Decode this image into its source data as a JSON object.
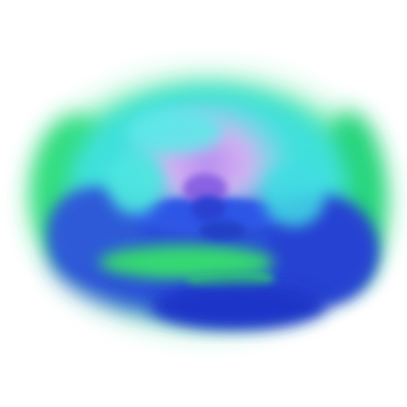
{
  "image": {
    "colors": {
      "background": "#ffffff",
      "outer_ring_green": "#2fe38a",
      "mid_ring_cyan": "#3fe0e0",
      "inner_glow_lavender": "#d0a8ee",
      "center_purple": "#9a70e0",
      "lower_blue": "#2a4fd8",
      "deep_blue": "#1d36c8",
      "green_band": "#34d872"
    }
  }
}
